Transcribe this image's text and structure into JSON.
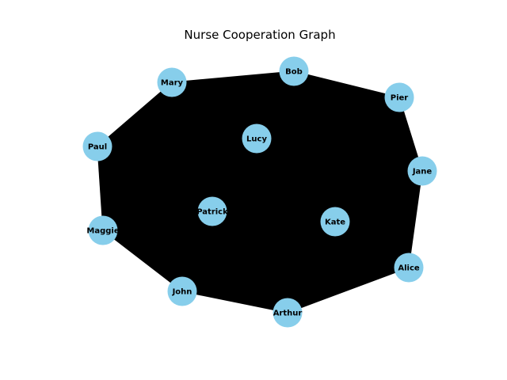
{
  "title": "Nurse Cooperation Graph",
  "colors": {
    "node_fill": "#87ceeb",
    "edge": "#000000",
    "background": "#ffffff"
  },
  "nodes": [
    {
      "id": "mary",
      "label": "Mary"
    },
    {
      "id": "bob",
      "label": "Bob"
    },
    {
      "id": "pier",
      "label": "Pier"
    },
    {
      "id": "paul",
      "label": "Paul"
    },
    {
      "id": "lucy",
      "label": "Lucy"
    },
    {
      "id": "jane",
      "label": "Jane"
    },
    {
      "id": "patrick",
      "label": "Patrick"
    },
    {
      "id": "kate",
      "label": "Kate"
    },
    {
      "id": "maggie",
      "label": "Maggie"
    },
    {
      "id": "alice",
      "label": "Alice"
    },
    {
      "id": "john",
      "label": "John"
    },
    {
      "id": "arthur",
      "label": "Arthur"
    }
  ],
  "edges": "complete graph (every nurse connected to every other nurse)"
}
